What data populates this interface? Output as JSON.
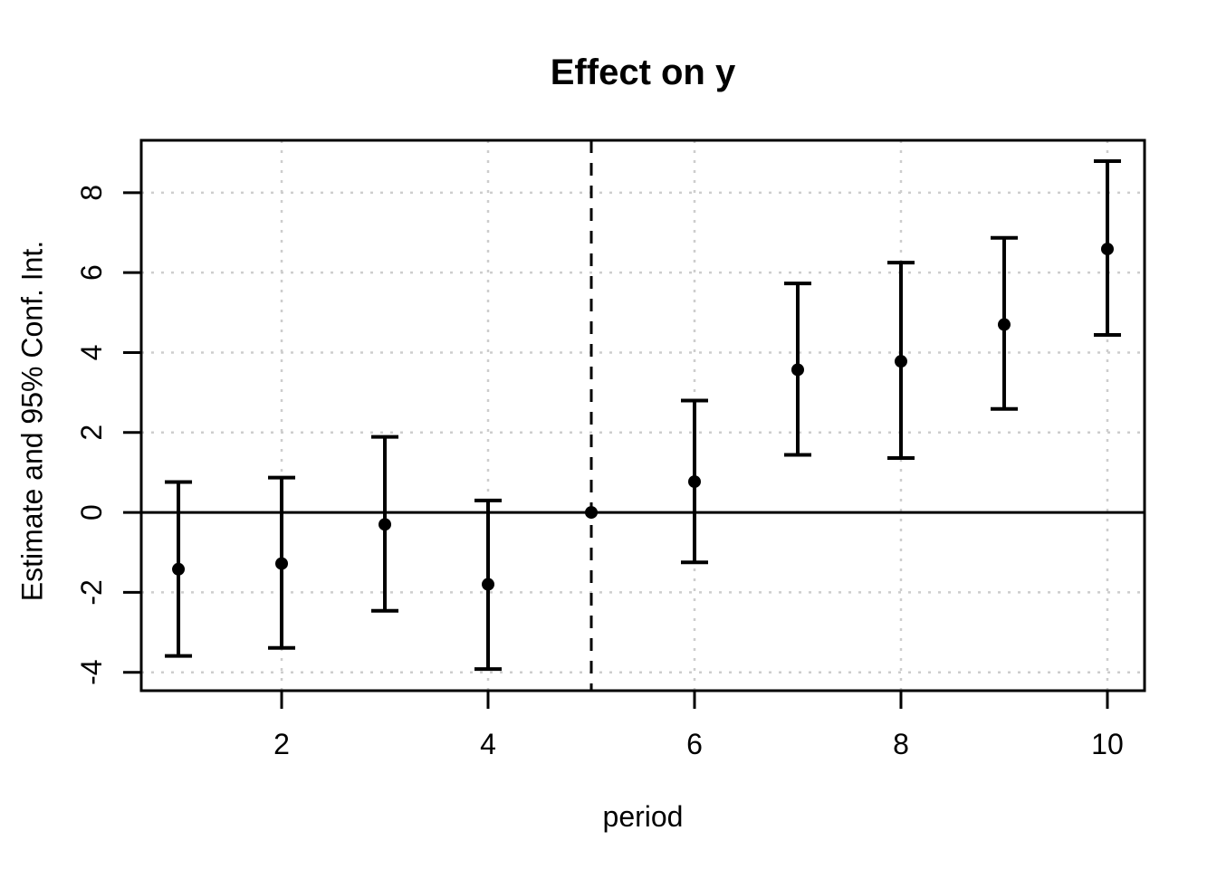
{
  "figure": {
    "title": "Effect on y",
    "xlabel": "period",
    "ylabel": "Estimate and 95% Conf. Int."
  },
  "chart_data": {
    "type": "scatter",
    "subtype": "event-study-error-bars",
    "title": "Effect on y",
    "xlabel": "period",
    "ylabel": "Estimate and 95% Conf. Int.",
    "xlim": [
      0.64,
      10.36
    ],
    "ylim": [
      -4.46,
      9.31
    ],
    "x_ticks": [
      2,
      4,
      6,
      8,
      10
    ],
    "y_ticks": [
      -4,
      -2,
      0,
      2,
      4,
      6,
      8
    ],
    "grid": true,
    "legend_position": "none",
    "points": [
      {
        "x": 1,
        "estimate": -1.42,
        "ci_lower": -3.59,
        "ci_upper": 0.76
      },
      {
        "x": 2,
        "estimate": -1.28,
        "ci_lower": -3.39,
        "ci_upper": 0.87
      },
      {
        "x": 3,
        "estimate": -0.3,
        "ci_lower": -2.46,
        "ci_upper": 1.89
      },
      {
        "x": 4,
        "estimate": -1.8,
        "ci_lower": -3.92,
        "ci_upper": 0.3
      },
      {
        "x": 5,
        "estimate": 0.0,
        "ci_lower": null,
        "ci_upper": null
      },
      {
        "x": 6,
        "estimate": 0.77,
        "ci_lower": -1.25,
        "ci_upper": 2.8
      },
      {
        "x": 7,
        "estimate": 3.57,
        "ci_lower": 1.44,
        "ci_upper": 5.73
      },
      {
        "x": 8,
        "estimate": 3.78,
        "ci_lower": 1.36,
        "ci_upper": 6.25
      },
      {
        "x": 9,
        "estimate": 4.7,
        "ci_lower": 2.59,
        "ci_upper": 6.87
      },
      {
        "x": 10,
        "estimate": 6.59,
        "ci_lower": 4.44,
        "ci_upper": 8.79
      }
    ],
    "reference_lines": {
      "horizontal": {
        "y": 0,
        "style": "solid",
        "color": "#000000"
      },
      "vertical": {
        "x": 5,
        "style": "dashed",
        "color": "#000000"
      }
    },
    "colors": {
      "point": "#000000",
      "error_bar": "#000000",
      "gridline": "#cdcdcd",
      "border": "#000000",
      "background": "#ffffff"
    }
  }
}
